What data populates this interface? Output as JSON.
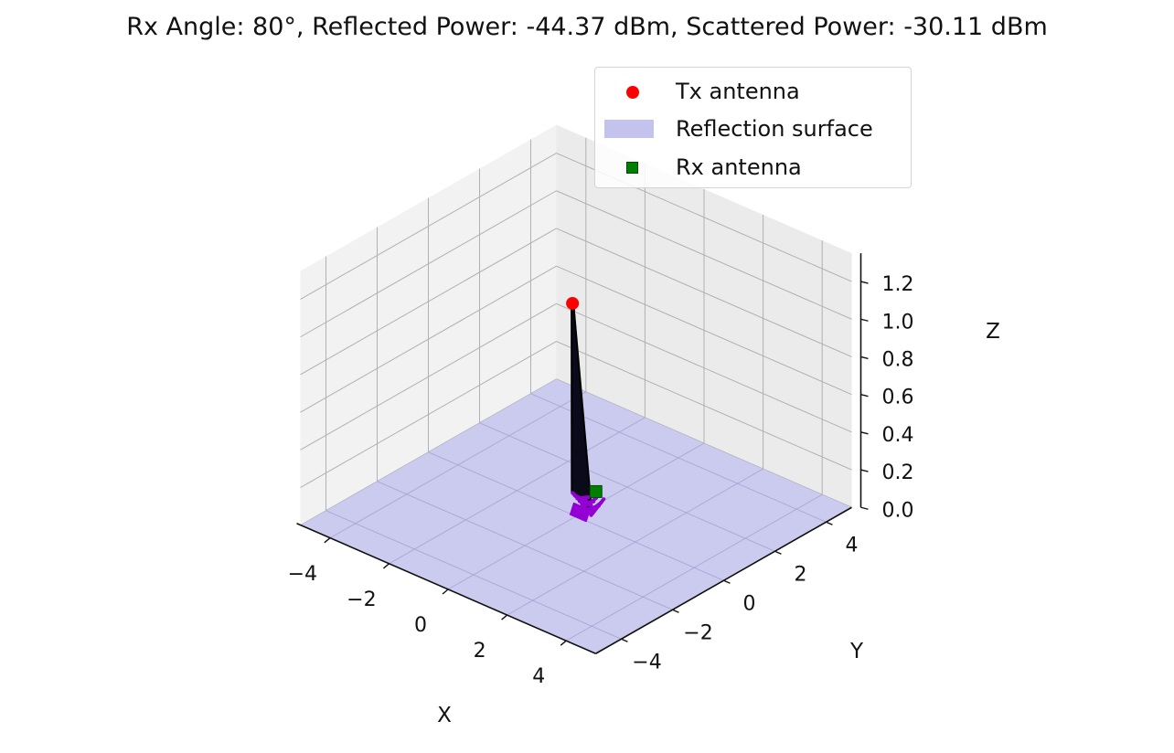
{
  "title": "Rx Angle: 80°, Reflected Power: -44.37 dBm, Scattered Power: -30.11 dBm",
  "chart_data": {
    "type": "scatter",
    "projection": "3d",
    "xlabel": "X",
    "ylabel": "Y",
    "zlabel": "Z",
    "xlim": [
      -5,
      5
    ],
    "ylim": [
      -5,
      5
    ],
    "zlim": [
      0,
      1.35
    ],
    "xticks": [
      -4,
      -2,
      0,
      2,
      4
    ],
    "yticks": [
      -4,
      -2,
      0,
      2,
      4
    ],
    "zticks": [
      0.0,
      0.2,
      0.4,
      0.6,
      0.8,
      1.0,
      1.2
    ],
    "xtick_labels": [
      "−4",
      "−2",
      "0",
      "2",
      "4"
    ],
    "ytick_labels": [
      "−4",
      "−2",
      "0",
      "2",
      "4"
    ],
    "ztick_labels": [
      "0.0",
      "0.2",
      "0.4",
      "0.6",
      "0.8",
      "1.0",
      "1.2"
    ],
    "grid": true,
    "legend_position": "top-right",
    "legend": [
      {
        "label": "Tx antenna",
        "marker": "circle",
        "color": "#ff0000"
      },
      {
        "label": "Reflection surface",
        "marker": "patch",
        "color": "#c3c3ee"
      },
      {
        "label": "Rx antenna",
        "marker": "square",
        "color": "#008000"
      }
    ],
    "tx_antenna": {
      "x": -0.9,
      "y": 0.9,
      "z": 1.0
    },
    "rx_antenna": {
      "x": 0.5,
      "y": 0.2,
      "z": 0.15
    },
    "reflection_surface": {
      "x": [
        -5,
        5
      ],
      "y": [
        -5,
        5
      ],
      "z": 0,
      "color": "#c3c3ee"
    },
    "ray_color": "#000000",
    "scatter_color": "#9400d3"
  }
}
